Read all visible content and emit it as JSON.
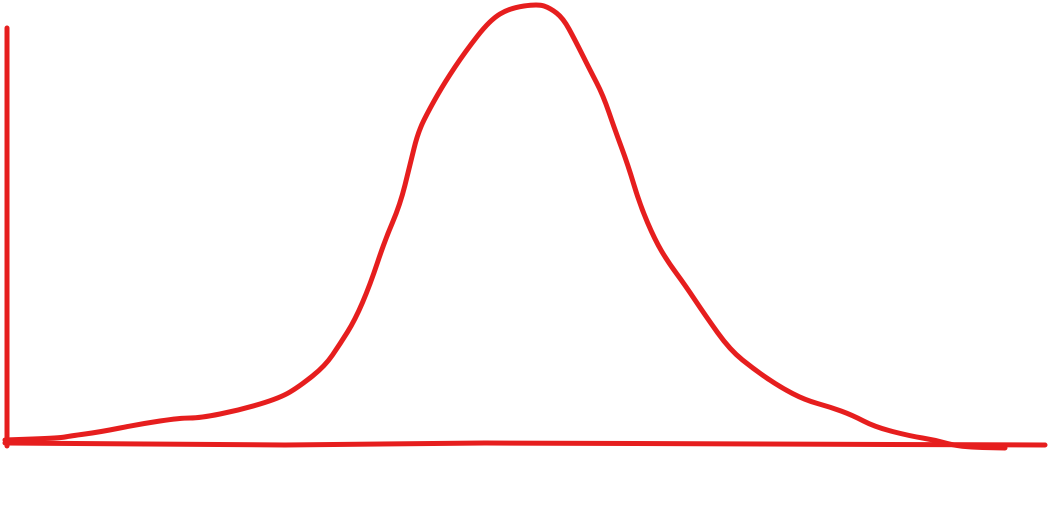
{
  "diagram": {
    "shape": "bell-curve",
    "description_visible_text": "",
    "stroke_color": "#e61e1e",
    "background_color": "#ffffff",
    "axes": {
      "x_axis": true,
      "y_axis": true,
      "labels": false,
      "ticks": false
    }
  }
}
